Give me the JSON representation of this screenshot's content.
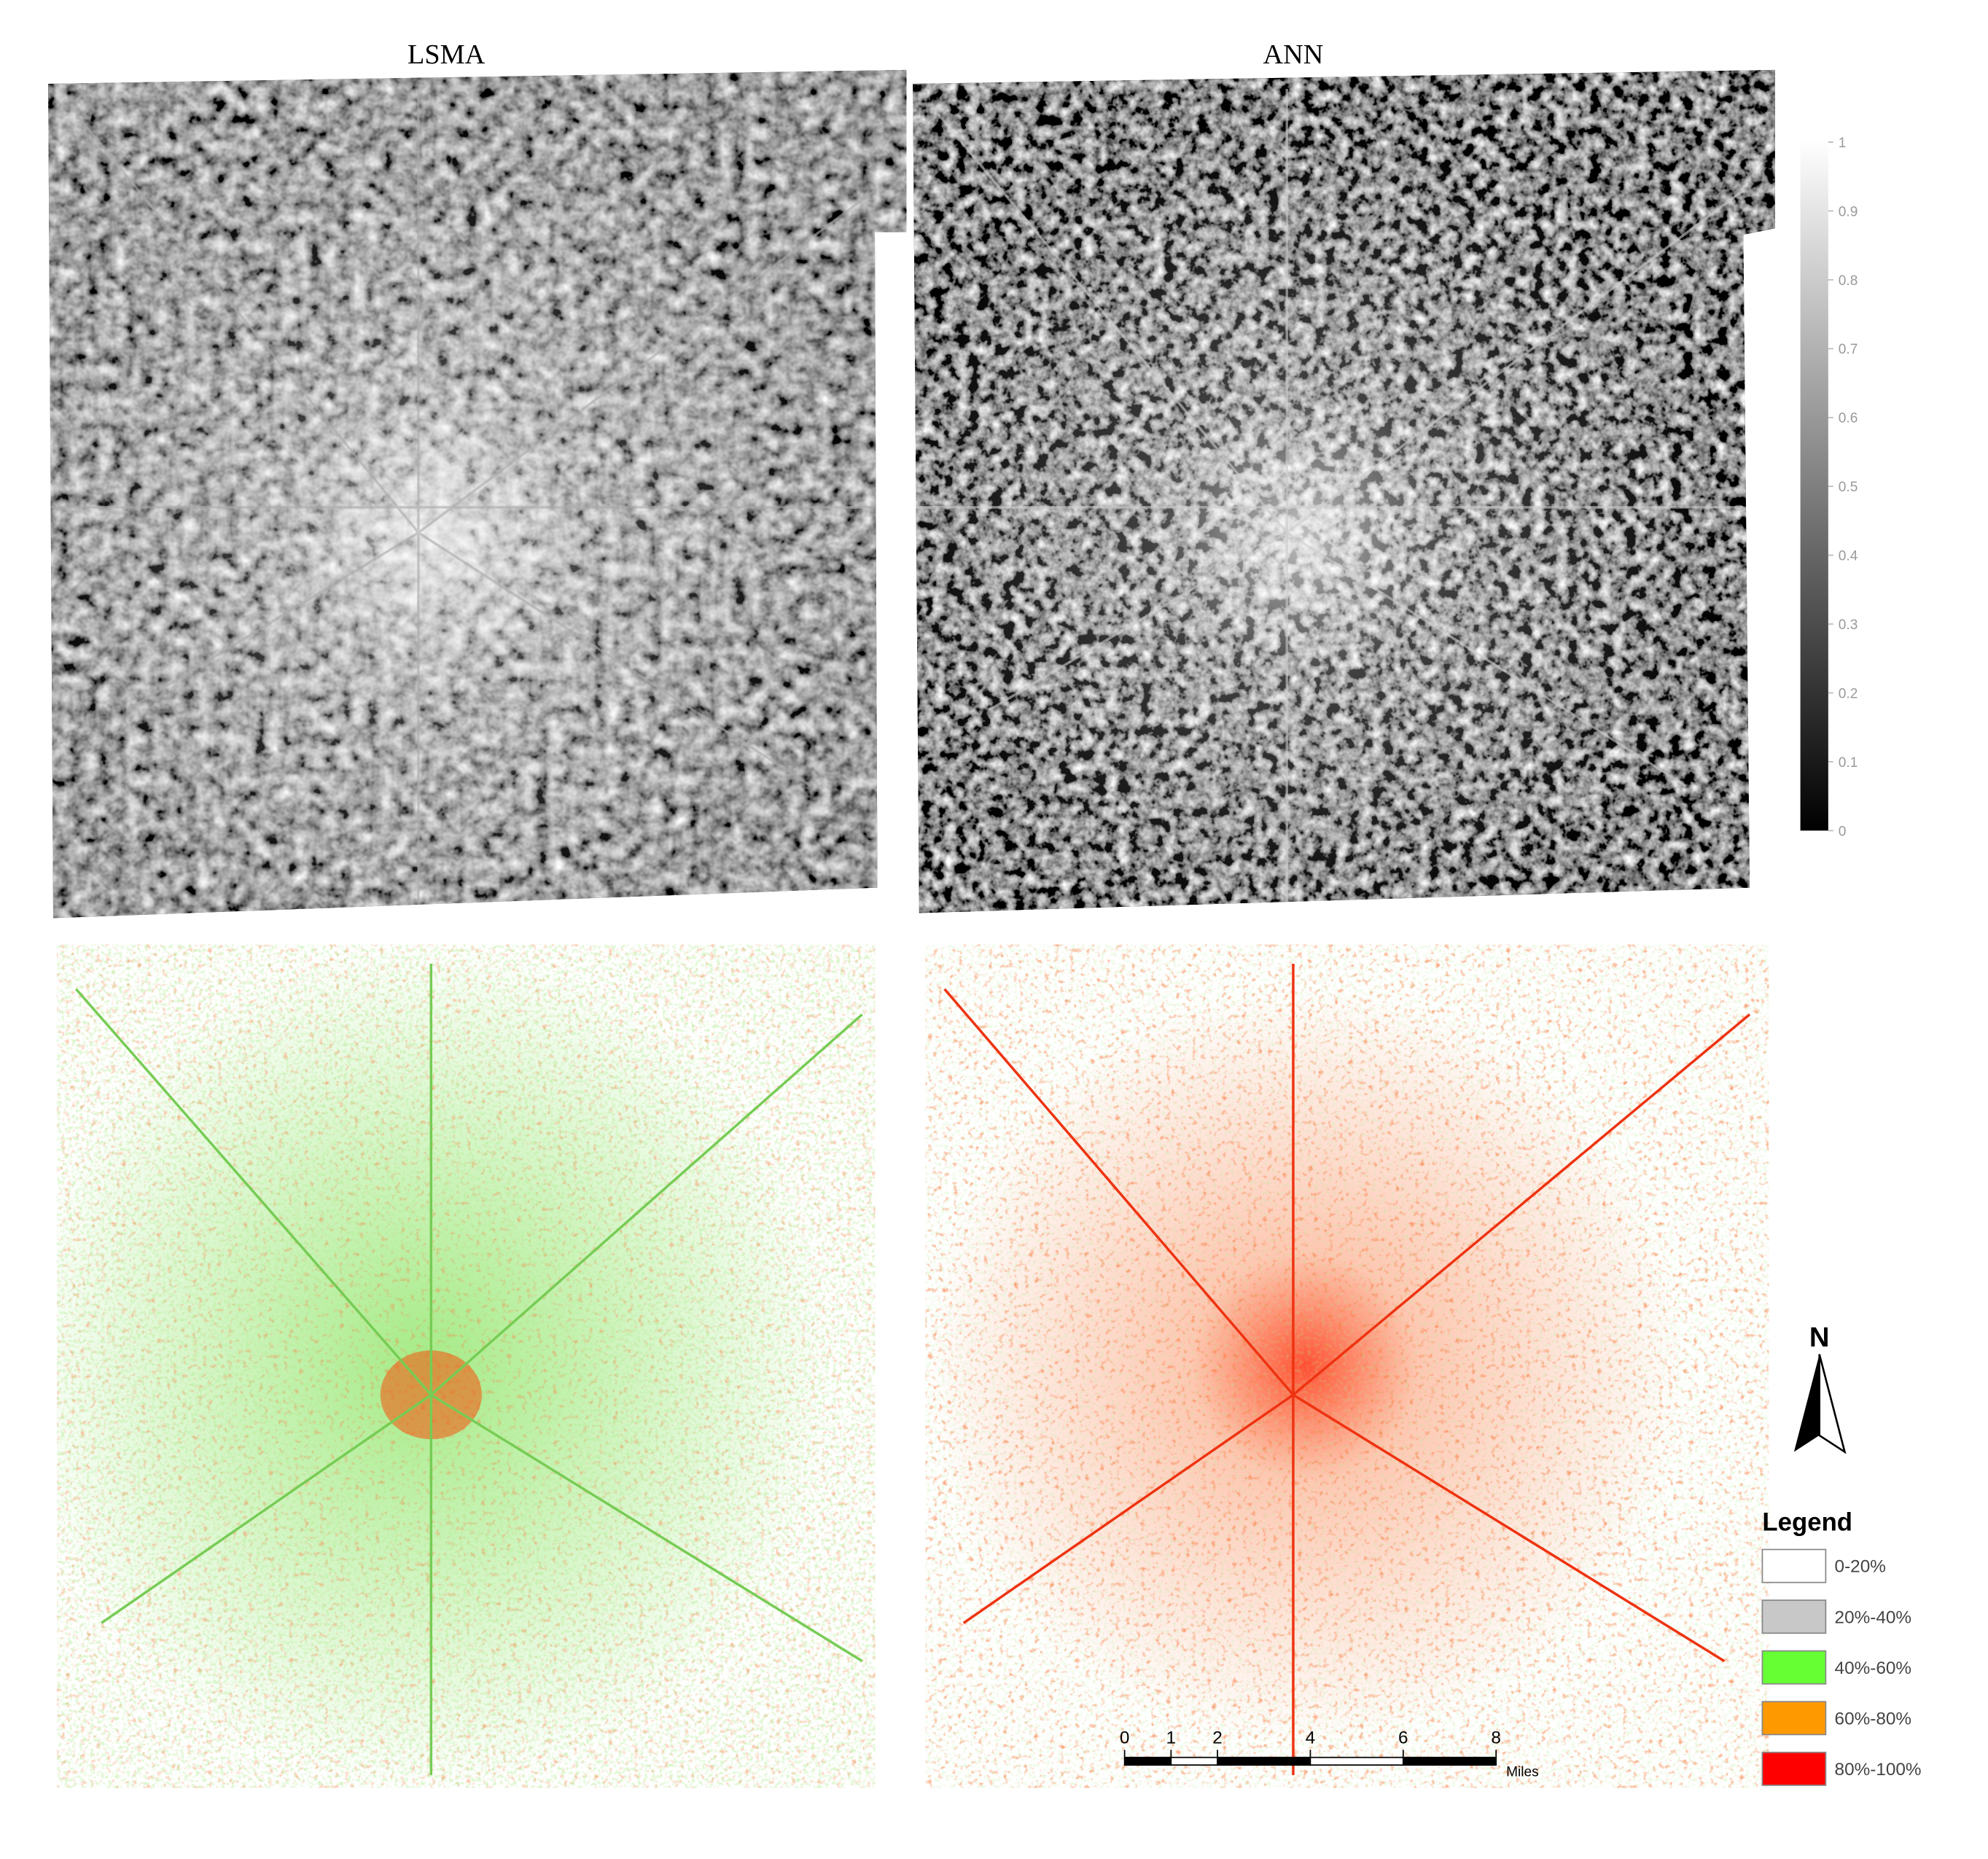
{
  "panels": [
    {
      "title": "LSMA"
    },
    {
      "title": "ANN"
    }
  ],
  "colorbar": {
    "range": [
      0,
      1
    ],
    "ticks": [
      0,
      0.1,
      0.2,
      0.3,
      0.4,
      0.5,
      0.6,
      0.7,
      0.8,
      0.9,
      1
    ]
  },
  "north_arrow": {
    "label": "N"
  },
  "legend": {
    "title": "Legend",
    "items": [
      {
        "label": "0-20%",
        "color": "#ffffff"
      },
      {
        "label": "20%-40%",
        "color": "#c8c8c8"
      },
      {
        "label": "40%-60%",
        "color": "#66ff33"
      },
      {
        "label": "60%-80%",
        "color": "#ff9900"
      },
      {
        "label": "80%-100%",
        "color": "#ff0000"
      }
    ]
  },
  "scale_bar": {
    "ticks": [
      0,
      1,
      2,
      4,
      6,
      8
    ],
    "unit": "Miles"
  }
}
